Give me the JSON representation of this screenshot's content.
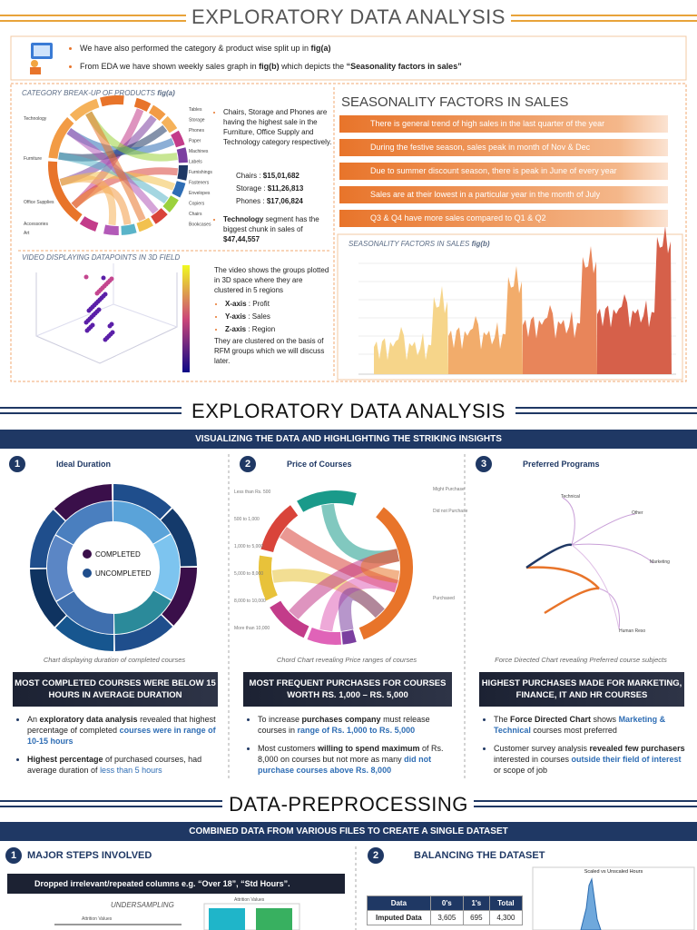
{
  "section1": {
    "title": "EXPLORATORY DATA ANALYSIS",
    "intro": [
      [
        "We have also performed the category & product wise split up in ",
        "fig(a)"
      ],
      [
        "From EDA we have shown weekly sales graph in ",
        "fig(b)",
        " which depicts the ",
        "“Seasonality factors in sales”"
      ]
    ],
    "category": {
      "title": "CATEGORY BREAK-UP OF PRODUCTS",
      "fig": "fig(a)",
      "left_labels": [
        "Technology",
        "Furniture",
        "Office Supplies",
        "Accessories",
        "Art"
      ],
      "right_labels": [
        "Tables",
        "Storage",
        "Phones",
        "Paper",
        "Machines",
        "Labels",
        "Furnishings",
        "Fasteners",
        "Envelopes",
        "Copiers",
        "Chairs",
        "Bookcases"
      ],
      "note1": "Chairs, Storage and Phones are having the highest sale in the Furniture, Office Supply and Technology category respectively.",
      "sales": [
        [
          "Chairs : ",
          "$15,01,682"
        ],
        [
          "Storage : ",
          "$11,26,813"
        ],
        [
          "Phones : ",
          "$17,06,824"
        ]
      ],
      "note2": [
        "Technology",
        " segment has the biggest chunk in sales of ",
        "$47,44,557"
      ]
    },
    "video": {
      "title": "VIDEO DISPLAYING DATAPOINTS IN 3D FIELD",
      "intro": "The video shows the groups plotted in 3D space where they are clustered in 5 regions",
      "axes": [
        [
          "X-axis",
          " : Profit"
        ],
        [
          "Y-axis",
          " : Sales"
        ],
        [
          "Z-axis",
          " : Region"
        ]
      ],
      "outro": "They are clustered on the basis of RFM groups which we will discuss later."
    },
    "seasonality": {
      "title": "SEASONALITY FACTORS IN SALES",
      "factors": [
        "There is general trend of high sales in the last quarter of the year",
        "During the festive season, sales peak in month of Nov & Dec",
        "Due to summer discount season, there is peak in June of every year",
        "Sales are at their lowest in a particular year in the month of July",
        "Q3 & Q4 have more sales compared to Q1 & Q2"
      ],
      "chart_title": "SEASONALITY FACTORS IN SALES",
      "fig": "fig(b)"
    }
  },
  "section2": {
    "title": "EXPLORATORY DATA ANALYSIS",
    "band": "VISUALIZING THE DATA AND HIGHLIGHTING THE STRIKING INSIGHTS",
    "columns": [
      {
        "number": "1",
        "title": "Ideal Duration",
        "legend": [
          "COMPLETED",
          "UNCOMPLETED"
        ],
        "caption": "Chart displaying duration of completed courses",
        "headline": "MOST COMPLETED COURSES WERE BELOW 15 HOURS IN AVERAGE DURATION",
        "bullets": [
          [
            "An ",
            "exploratory data analysis",
            " revealed that highest percentage of completed ",
            "courses were in range of 10-15 hours"
          ],
          [
            "Highest percentage",
            " of purchased courses, had average duration of ",
            "less than 5 hours"
          ]
        ]
      },
      {
        "number": "2",
        "title": "Price of Courses",
        "left_labels": [
          "Less than Rs. 500",
          "500 to 1,000",
          "1,000 to 5,000",
          "5,000 to 8,000",
          "8,000 to 10,000",
          "More than 10,000"
        ],
        "right_labels": [
          "Might Purchase",
          "Did not Purchase",
          "Purchased"
        ],
        "caption": "Chord Chart revealing Price ranges of courses",
        "headline": "MOST FREQUENT PURCHASES FOR COURSES WORTH RS. 1,000 – RS. 5,000",
        "bullets": [
          [
            "To increase ",
            "purchases company",
            " must release courses in ",
            "range of Rs. 1,000 to Rs. 5,000"
          ],
          [
            "Most customers ",
            "willing to spend maximum",
            " of Rs. 8,000 on courses but not more as many ",
            "did not purchase courses above Rs. 8,000"
          ]
        ]
      },
      {
        "number": "3",
        "title": "Preferred Programs",
        "nodes": [
          "Technical",
          "Other",
          "Marketing",
          "Human Reso"
        ],
        "caption": "Force Directed Chart revealing Preferred course subjects",
        "headline": "HIGHEST PURCHASES MADE FOR MARKETING, FINANCE, IT AND HR COURSES",
        "bullets": [
          [
            "The ",
            "Force Directed Chart",
            " shows ",
            "Marketing & Technical",
            " courses most preferred"
          ],
          [
            "Customer survey analysis ",
            "revealed few purchasers",
            " interested in courses ",
            "outside their field of interest",
            " or scope of job"
          ]
        ]
      }
    ]
  },
  "section3": {
    "title": "DATA-PREPROCESSING",
    "band": "COMBINED DATA FROM VARIOUS FILES TO CREATE A SINGLE DATASET",
    "step1": {
      "number": "1",
      "title": "MAJOR STEPS INVOLVED",
      "bar": "Dropped irrelevant/repeated columns e.g. “Over 18”, “Std Hours”.",
      "label": "UNDERSAMPLING",
      "chart_title": "Attrition Values"
    },
    "step2": {
      "number": "2",
      "title": "BALANCING THE DATASET",
      "table": {
        "header": [
          "Data",
          "0's",
          "1's",
          "Total"
        ],
        "rows": [
          [
            "Imputed Data",
            "3,605",
            "695",
            "4,300"
          ]
        ]
      },
      "chart_title": "Scaled vs Unscaled Hours"
    }
  }
}
